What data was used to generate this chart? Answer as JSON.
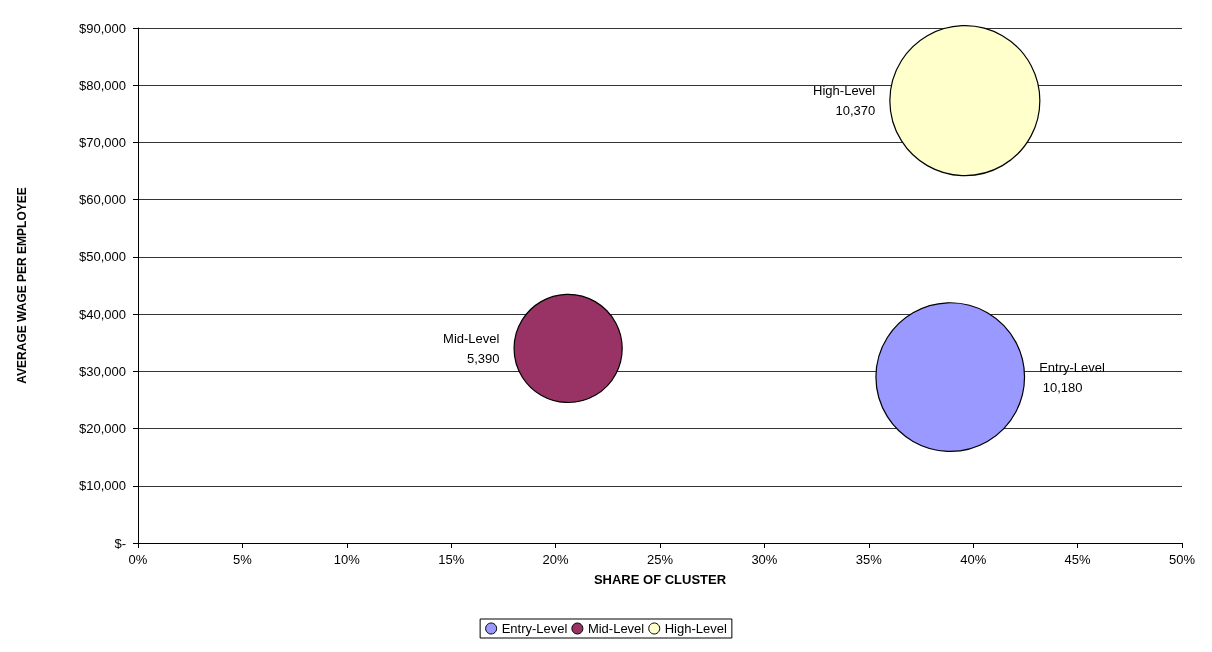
{
  "chart_data": {
    "type": "bubble",
    "xlabel": "SHARE OF CLUSTER",
    "ylabel": "AVERAGE WAGE PER EMPLOYEE",
    "series": [
      {
        "name": "Entry-Level",
        "color": "#9999ff",
        "x": [
          38.9
        ],
        "values": [
          29000
        ],
        "sizes": [
          10180
        ],
        "value_labels": [
          "10,180"
        ]
      },
      {
        "name": "Mid-Level",
        "color": "#993366",
        "x": [
          20.6
        ],
        "values": [
          34000
        ],
        "sizes": [
          5390
        ],
        "value_labels": [
          "5,390"
        ]
      },
      {
        "name": "High-Level",
        "color": "#ffffcc",
        "x": [
          39.6
        ],
        "values": [
          77300
        ],
        "sizes": [
          10370
        ],
        "value_labels": [
          "10,370"
        ]
      }
    ],
    "xlim": [
      0,
      50
    ],
    "xticks": [
      {
        "value": 0,
        "label": "0%"
      },
      {
        "value": 5,
        "label": "5%"
      },
      {
        "value": 10,
        "label": "10%"
      },
      {
        "value": 15,
        "label": "15%"
      },
      {
        "value": 20,
        "label": "20%"
      },
      {
        "value": 25,
        "label": "25%"
      },
      {
        "value": 30,
        "label": "30%"
      },
      {
        "value": 35,
        "label": "35%"
      },
      {
        "value": 40,
        "label": "40%"
      },
      {
        "value": 45,
        "label": "45%"
      },
      {
        "value": 50,
        "label": "50%"
      }
    ],
    "ylim": [
      0,
      90000
    ],
    "yticks": [
      {
        "value": 0,
        "label": "$-"
      },
      {
        "value": 10000,
        "label": "$10,000"
      },
      {
        "value": 20000,
        "label": "$20,000"
      },
      {
        "value": 30000,
        "label": "$30,000"
      },
      {
        "value": 40000,
        "label": "$40,000"
      },
      {
        "value": 50000,
        "label": "$50,000"
      },
      {
        "value": 60000,
        "label": "$60,000"
      },
      {
        "value": 70000,
        "label": "$70,000"
      },
      {
        "value": 80000,
        "label": "$80,000"
      },
      {
        "value": 90000,
        "label": "$90,000"
      }
    ],
    "grid": "y",
    "legend": "bottom",
    "marker": "circle"
  }
}
